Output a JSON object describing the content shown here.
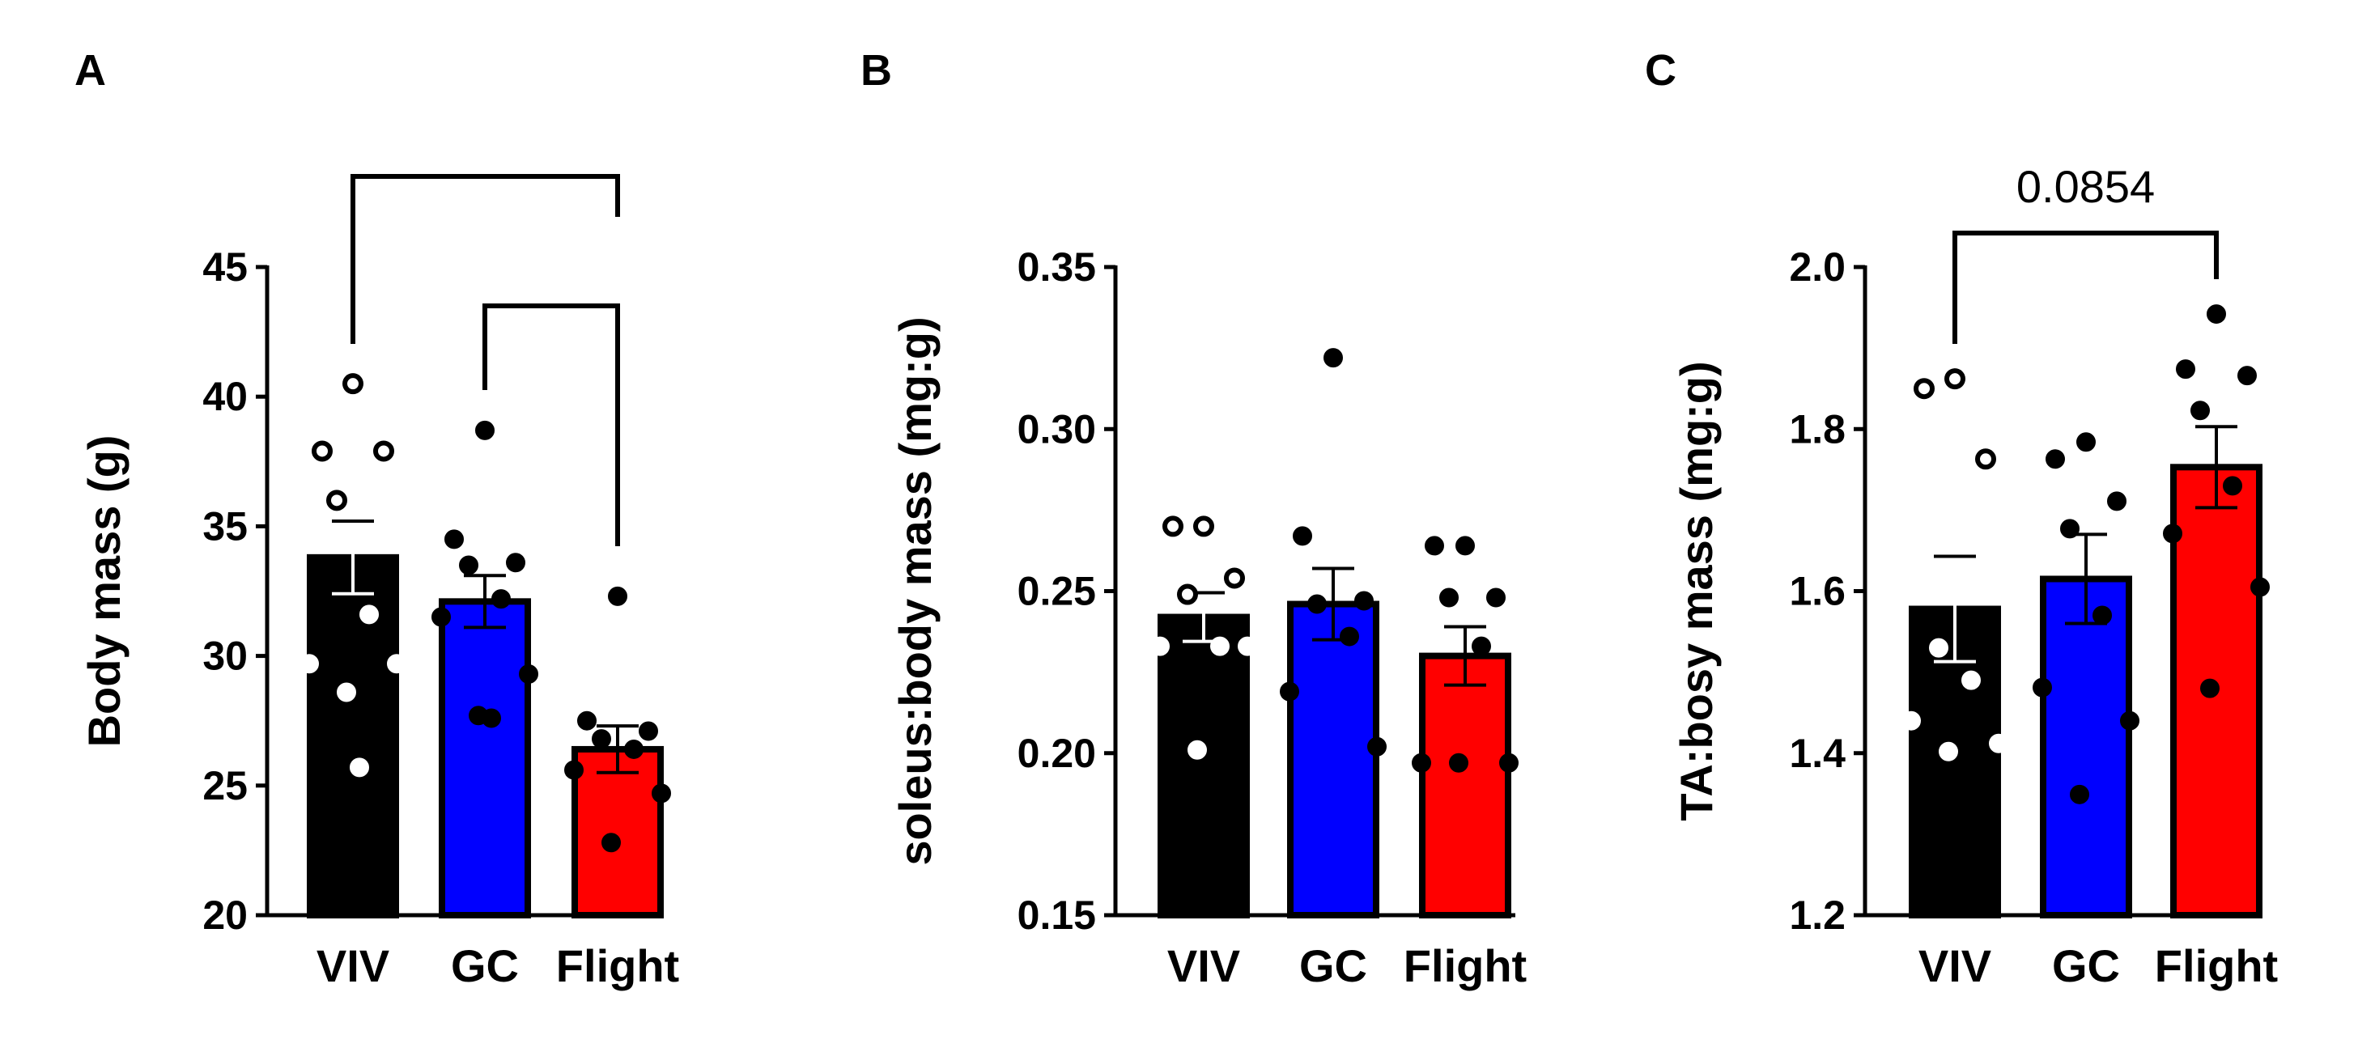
{
  "chart_data": [
    {
      "panel": "A",
      "type": "bar",
      "ylabel": "Body mass (g)",
      "ylim": [
        20,
        45
      ],
      "yticks": [
        20,
        25,
        30,
        35,
        40,
        45
      ],
      "categories": [
        "VIV",
        "GC",
        "Flight"
      ],
      "colors": [
        "#000000",
        "#0000ff",
        "#ff0000"
      ],
      "values": [
        33.8,
        32.1,
        26.4
      ],
      "sem": [
        1.4,
        1.0,
        0.9
      ],
      "points": [
        [
          40.5,
          37.9,
          37.9,
          36.0,
          31.6,
          29.7,
          29.7,
          28.6,
          25.7
        ],
        [
          38.7,
          34.5,
          33.6,
          33.5,
          32.2,
          31.5,
          29.3,
          27.7,
          27.6
        ],
        [
          32.3,
          27.5,
          27.1,
          26.8,
          26.4,
          25.6,
          24.7,
          22.8
        ]
      ],
      "point_style": [
        "open",
        "filled",
        "filled"
      ],
      "comparisons": [
        {
          "from": 0,
          "to": 2,
          "label": ""
        },
        {
          "from": 1,
          "to": 2,
          "label": ""
        }
      ]
    },
    {
      "panel": "B",
      "type": "bar",
      "ylabel": "soleus:body mass (mg:g)",
      "ylim": [
        0.15,
        0.35
      ],
      "yticks": [
        "0.15",
        "0.20",
        "0.25",
        "0.30",
        "0.35"
      ],
      "categories": [
        "VIV",
        "GC",
        "Flight"
      ],
      "colors": [
        "#000000",
        "#0000ff",
        "#ff0000"
      ],
      "values": [
        0.242,
        0.246,
        0.23
      ],
      "sem": [
        0.0075,
        0.011,
        0.009
      ],
      "points": [
        [
          0.27,
          0.27,
          0.254,
          0.249,
          0.233,
          0.233,
          0.233,
          0.201
        ],
        [
          0.322,
          0.267,
          0.247,
          0.246,
          0.236,
          0.219,
          0.202
        ],
        [
          0.264,
          0.264,
          0.248,
          0.248,
          0.233,
          0.197,
          0.197,
          0.197
        ]
      ],
      "point_style": [
        "open",
        "filled",
        "filled"
      ],
      "comparisons": []
    },
    {
      "panel": "C",
      "type": "bar",
      "ylabel": "TA:bosy mass (mg:g)",
      "ylim": [
        1.2,
        2.0
      ],
      "yticks": [
        "1.2",
        "1.4",
        "1.6",
        "1.8",
        "2.0"
      ],
      "categories": [
        "VIV",
        "GC",
        "Flight"
      ],
      "colors": [
        "#000000",
        "#0000ff",
        "#ff0000"
      ],
      "values": [
        1.578,
        1.615,
        1.753
      ],
      "sem": [
        0.065,
        0.055,
        0.05
      ],
      "points": [
        [
          1.862,
          1.85,
          1.763,
          1.53,
          1.49,
          1.44,
          1.412,
          1.402
        ],
        [
          1.784,
          1.763,
          1.711,
          1.677,
          1.57,
          1.481,
          1.44,
          1.349
        ],
        [
          1.942,
          1.874,
          1.866,
          1.823,
          1.73,
          1.671,
          1.605,
          1.48
        ]
      ],
      "point_style": [
        "open",
        "filled",
        "filled"
      ],
      "comparisons": [
        {
          "from": 0,
          "to": 2,
          "label": "0.0854"
        }
      ]
    }
  ]
}
